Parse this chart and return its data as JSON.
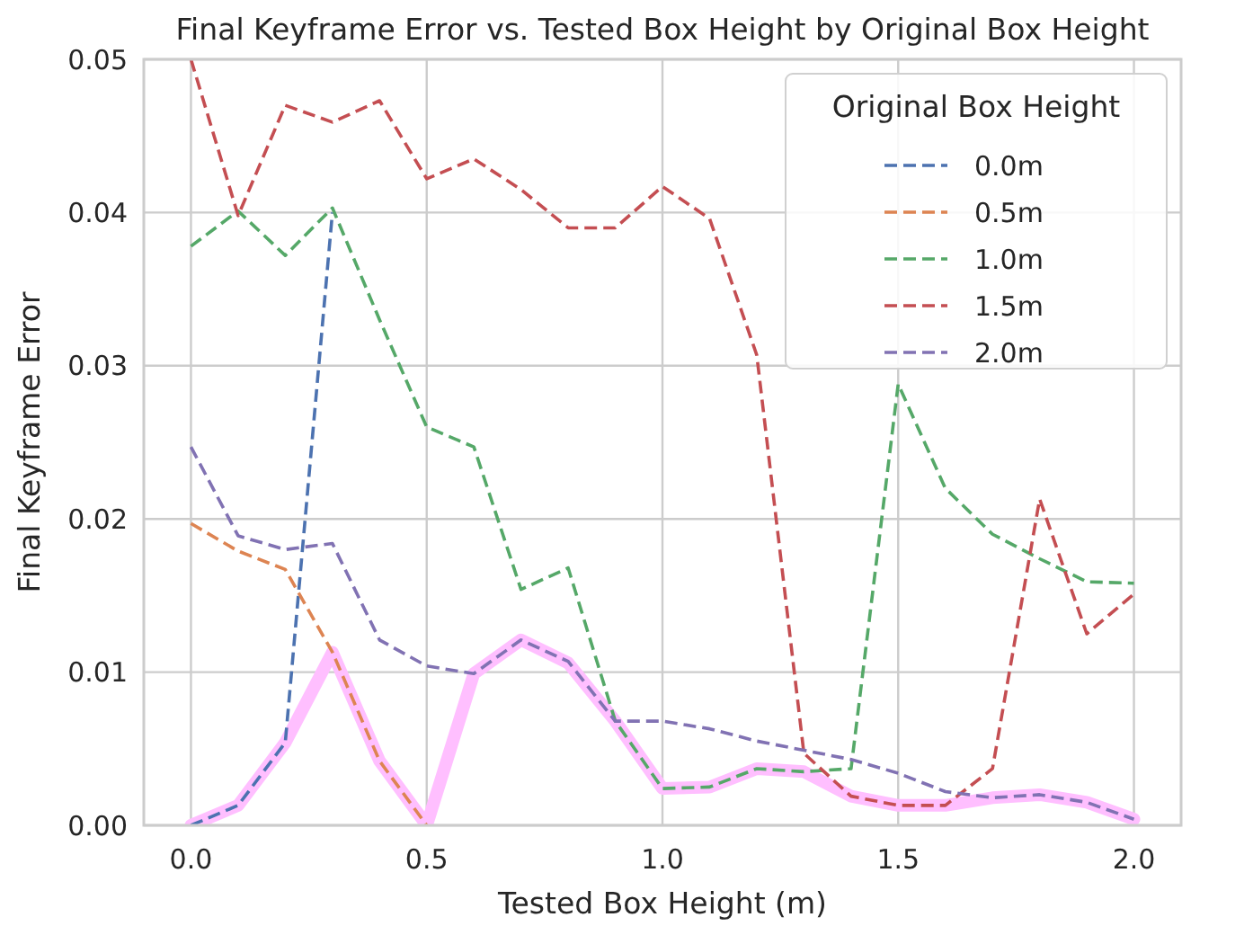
{
  "chart_data": {
    "type": "line",
    "title": "Final Keyframe Error vs. Tested Box Height by Original Box Height",
    "xlabel": "Tested Box Height (m)",
    "ylabel": "Final Keyframe Error",
    "legend_title": "Original Box Height",
    "x": [
      0,
      0.1,
      0.2,
      0.3,
      0.4,
      0.5,
      0.6,
      0.7,
      0.8,
      0.9,
      1.0,
      1.1,
      1.2,
      1.3,
      1.4,
      1.5,
      1.6,
      1.7,
      1.8,
      1.9,
      2.0
    ],
    "series": [
      {
        "color": "#ffbfff",
        "line_style": "solid",
        "values": [
          0,
          0.0013,
          0.0054,
          0.0113,
          0.0042,
          0,
          0.0099,
          0.0121,
          0.0106,
          0.0068,
          0.0024,
          0.0025,
          0.0037,
          0.0035,
          0.0019,
          0.0013,
          0.0013,
          0.0018,
          0.002,
          0.0015,
          0.0004
        ]
      },
      {
        "name": "0.0m",
        "color": "#4c72b0",
        "values": [
          0,
          0.0013,
          0.0054,
          0.04,
          null,
          null,
          null,
          null,
          null,
          null,
          null,
          null,
          null,
          null,
          null,
          null,
          null,
          null,
          null,
          null,
          null
        ]
      },
      {
        "name": "0.5m",
        "color": "#dd8452",
        "values": [
          0.0197,
          0.0179,
          0.0167,
          0.0113,
          0.0042,
          0,
          null,
          null,
          null,
          null,
          null,
          null,
          null,
          null,
          null,
          null,
          null,
          null,
          null,
          null,
          null
        ]
      },
      {
        "name": "1.0m",
        "color": "#55a868",
        "values": [
          0.0378,
          0.0401,
          0.0372,
          0.0403,
          0.033,
          0.026,
          0.0247,
          0.0154,
          0.0168,
          0.0068,
          0.0024,
          0.0025,
          0.0037,
          0.0035,
          0.0037,
          0.0288,
          0.022,
          0.019,
          0.0174,
          0.0159,
          0.0158
        ]
      },
      {
        "name": "1.5m",
        "color": "#c44e52",
        "values": [
          0.05,
          0.0398,
          0.047,
          0.0459,
          0.0473,
          0.0422,
          0.0435,
          0.0415,
          0.039,
          0.039,
          0.0417,
          0.0396,
          0.0307,
          0.0047,
          0.0019,
          0.0013,
          0.0013,
          0.0037,
          0.0213,
          0.0125,
          0.0151
        ]
      },
      {
        "name": "2.0m",
        "color": "#8172b3",
        "values": [
          0.0247,
          0.0189,
          0.018,
          0.0184,
          0.0121,
          0.0104,
          0.0099,
          0.0121,
          0.0107,
          0.0068,
          0.0068,
          0.0063,
          0.0055,
          0.0049,
          0.0043,
          0.0034,
          0.0022,
          0.0018,
          0.002,
          0.0015,
          0.0004
        ]
      }
    ],
    "xlim": [
      -0.1,
      2.1
    ],
    "xticks": [
      {
        "value": 0,
        "label": "0.0"
      },
      {
        "value": 0.5,
        "label": "0.5"
      },
      {
        "value": 1,
        "label": "1.0"
      },
      {
        "value": 1.5,
        "label": "1.5"
      },
      {
        "value": 2,
        "label": "2.0"
      }
    ],
    "ylim": [
      0,
      0.05
    ],
    "yticks": [
      {
        "value": 0,
        "label": "0.00"
      },
      {
        "value": 0.01,
        "label": "0.01"
      },
      {
        "value": 0.02,
        "label": "0.02"
      },
      {
        "value": 0.03,
        "label": "0.03"
      },
      {
        "value": 0.04,
        "label": "0.04"
      },
      {
        "value": 0.05,
        "label": "0.05"
      }
    ],
    "grid": true,
    "legend": "top right",
    "line_style": "dashed",
    "marker": "none"
  }
}
